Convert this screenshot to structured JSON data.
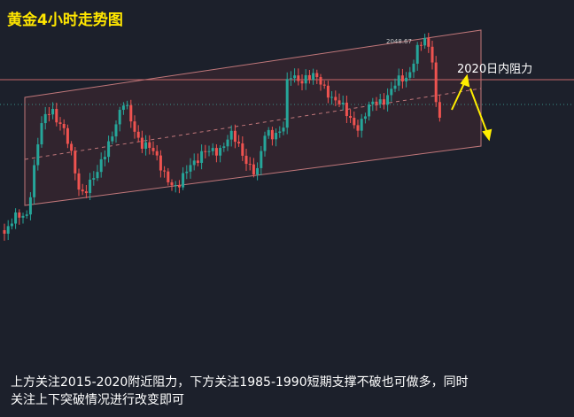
{
  "title": "黄金4小时走势图",
  "peak_label": "2048.67",
  "resistance_label": "2020日内阻力",
  "caption": [
    "上方关注2015-2020附近阻力，下方关注1985-1990短期支撑不破也可做多，同时",
    "关注上下突破情况进行改变即可"
  ]
}
